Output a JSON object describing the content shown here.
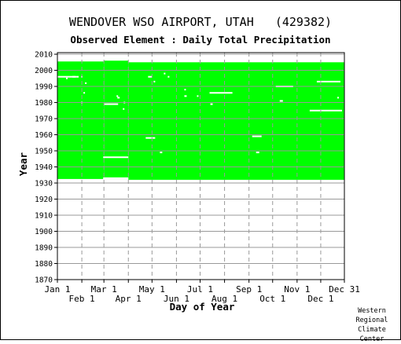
{
  "header": {
    "title": "WENDOVER WSO AIRPORT, UTAH   (429382)",
    "subtitle": "Observed Element : Daily Total Precipitation"
  },
  "credit": [
    "Western",
    "Regional",
    "Climate",
    "Center"
  ],
  "colors": {
    "data": "#00ff00",
    "missing": "#ffffff",
    "grid": "#999999",
    "axis": "#000000",
    "text": "#000000",
    "background": "#ffffff"
  },
  "chart_data": {
    "type": "heatmap",
    "title": "WENDOVER WSO AIRPORT, UTAH   (429382)",
    "subtitle": "Observed Element : Daily Total Precipitation",
    "xlabel": "Day of Year",
    "ylabel": "Year",
    "xlim": [
      1,
      365
    ],
    "ylim": [
      1870,
      2011
    ],
    "grid": true,
    "x_ticks_upper": [
      {
        "label": "Jan 1",
        "day": 1
      },
      {
        "label": "Mar 1",
        "day": 60
      },
      {
        "label": "May 1",
        "day": 121
      },
      {
        "label": "Jul 1",
        "day": 182
      },
      {
        "label": "Sep 1",
        "day": 244
      },
      {
        "label": "Nov 1",
        "day": 305
      },
      {
        "label": "Dec 31",
        "day": 365
      }
    ],
    "x_ticks_lower": [
      {
        "label": "Feb 1",
        "day": 32
      },
      {
        "label": "Apr 1",
        "day": 91
      },
      {
        "label": "Jun 1",
        "day": 152
      },
      {
        "label": "Aug 1",
        "day": 213
      },
      {
        "label": "Oct 1",
        "day": 274
      },
      {
        "label": "Dec 1",
        "day": 335
      }
    ],
    "y_ticks": [
      1870,
      1880,
      1890,
      1900,
      1910,
      1920,
      1930,
      1940,
      1950,
      1960,
      1970,
      1980,
      1990,
      2000,
      2010
    ],
    "coverage": [
      {
        "day_start": 1,
        "day_end": 60,
        "year_start": 1932.5,
        "year_end": 2005.5
      },
      {
        "day_start": 60,
        "day_end": 91,
        "year_start": 1932.5,
        "year_end": 2006.0
      },
      {
        "day_start": 91,
        "day_end": 365,
        "year_start": 1932.0,
        "year_end": 2005.0
      }
    ],
    "missing_segments": [
      {
        "year": 1996,
        "day_start": 1,
        "day_end": 28
      },
      {
        "year": 1996,
        "day_start": 20,
        "day_end": 24
      },
      {
        "year": 1995,
        "day_start": 12,
        "day_end": 14
      },
      {
        "year": 1996,
        "day_start": 31,
        "day_end": 33
      },
      {
        "year": 1992,
        "day_start": 36,
        "day_end": 38
      },
      {
        "year": 1986,
        "day_start": 34,
        "day_end": 36
      },
      {
        "year": 1980,
        "day_start": 31,
        "day_end": 33
      },
      {
        "year": 1979,
        "day_start": 60,
        "day_end": 78
      },
      {
        "year": 1983,
        "day_start": 77,
        "day_end": 80
      },
      {
        "year": 1984,
        "day_start": 76,
        "day_end": 78
      },
      {
        "year": 1980,
        "day_start": 85,
        "day_end": 87
      },
      {
        "year": 1976,
        "day_start": 84,
        "day_end": 86
      },
      {
        "year": 1946,
        "day_start": 59,
        "day_end": 91
      },
      {
        "year": 1933,
        "day_start": 59,
        "day_end": 91
      },
      {
        "year": 1996,
        "day_start": 116,
        "day_end": 121
      },
      {
        "year": 1993,
        "day_start": 123,
        "day_end": 125
      },
      {
        "year": 1998,
        "day_start": 136,
        "day_end": 138
      },
      {
        "year": 1996,
        "day_start": 141,
        "day_end": 143
      },
      {
        "year": 1988,
        "day_start": 162,
        "day_end": 164
      },
      {
        "year": 1984,
        "day_start": 162,
        "day_end": 165
      },
      {
        "year": 1986,
        "day_start": 194,
        "day_end": 223
      },
      {
        "year": 1979,
        "day_start": 195,
        "day_end": 198
      },
      {
        "year": 1984,
        "day_start": 178,
        "day_end": 180
      },
      {
        "year": 1958,
        "day_start": 113,
        "day_end": 125
      },
      {
        "year": 1949,
        "day_start": 131,
        "day_end": 134
      },
      {
        "year": 1959,
        "day_start": 248,
        "day_end": 260
      },
      {
        "year": 1949,
        "day_start": 253,
        "day_end": 257
      },
      {
        "year": 1990,
        "day_start": 278,
        "day_end": 300
      },
      {
        "year": 1981,
        "day_start": 283,
        "day_end": 287
      },
      {
        "year": 1975,
        "day_start": 321,
        "day_end": 362
      },
      {
        "year": 1993,
        "day_start": 330,
        "day_end": 360
      },
      {
        "year": 1983,
        "day_start": 356,
        "day_end": 358
      }
    ]
  }
}
